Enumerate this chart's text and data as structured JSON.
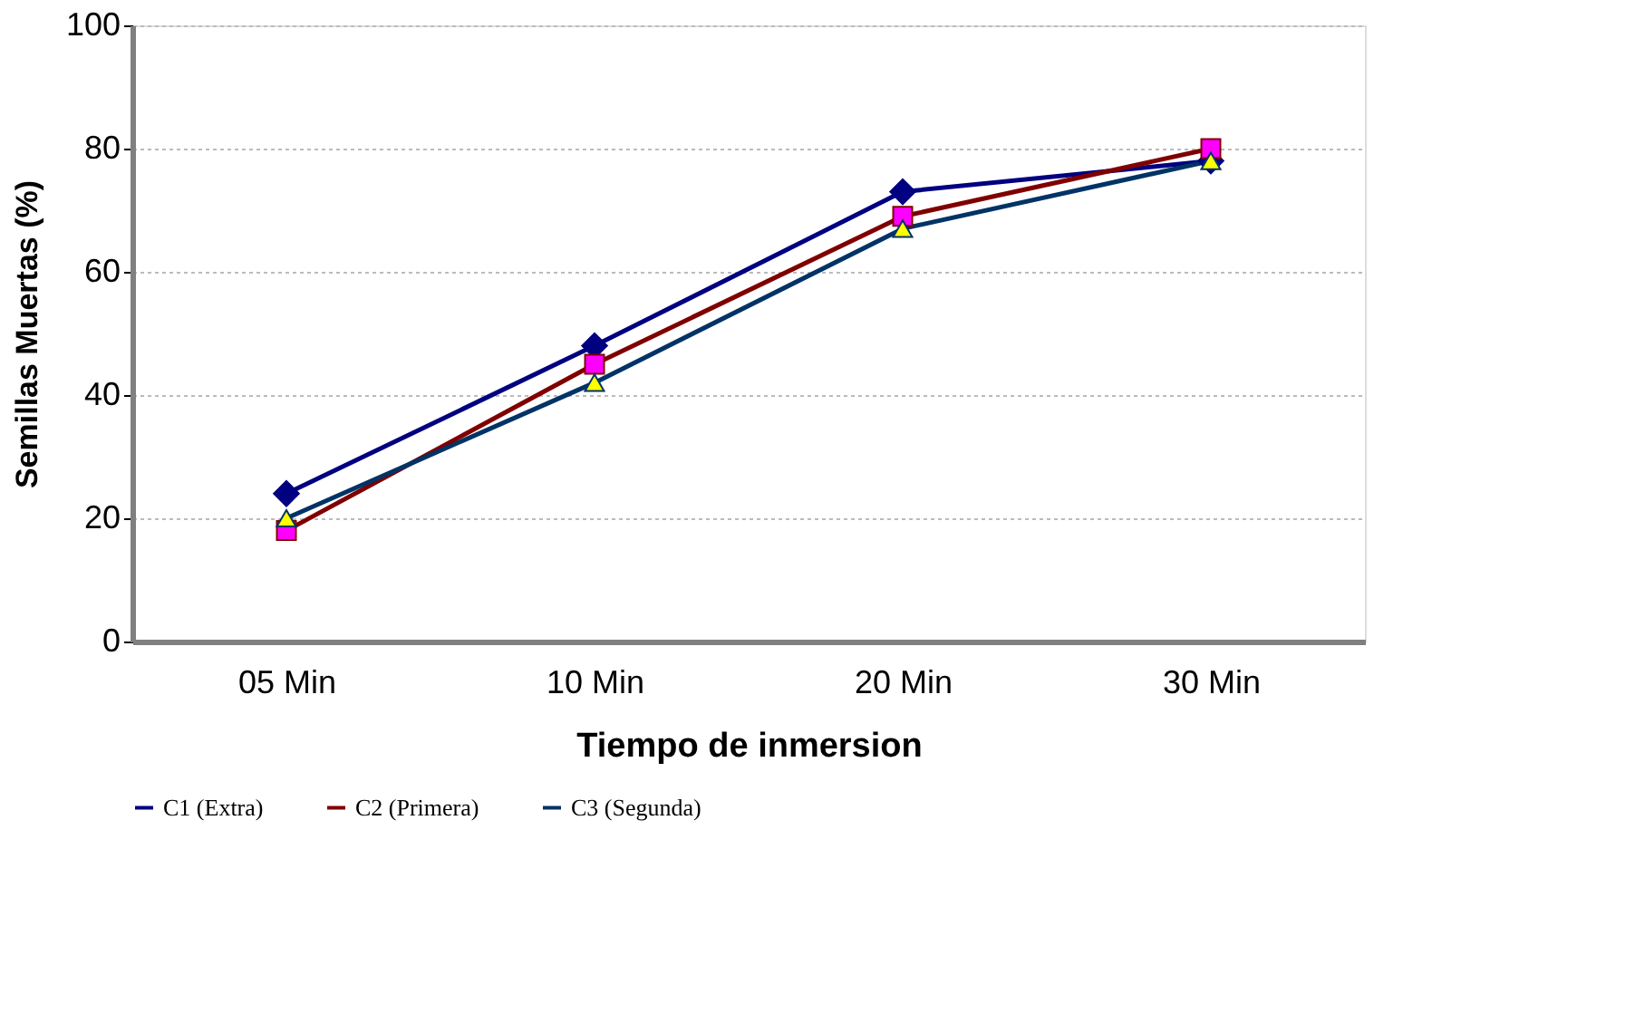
{
  "chart_data": {
    "type": "line",
    "xlabel": "Tiempo de inmersion",
    "ylabel": "Semillas Muertas  (%)",
    "categories": [
      "05 Min",
      "10 Min",
      "20 Min",
      "30 Min"
    ],
    "series": [
      {
        "name": "C1 (Extra)",
        "color": "#000080",
        "marker": "diamond",
        "values": [
          24,
          48,
          73,
          78
        ]
      },
      {
        "name": "C2 (Primera)",
        "color": "#800000",
        "marker": "square",
        "values": [
          18,
          45,
          69,
          80
        ]
      },
      {
        "name": "C3 (Segunda)",
        "color": "#003366",
        "marker": "triangle",
        "values": [
          20,
          42,
          67,
          78
        ]
      }
    ],
    "ylim": [
      0,
      100
    ],
    "yticks": [
      0,
      20,
      40,
      60,
      80,
      100
    ],
    "grid": "y",
    "legend": "bottom",
    "line_style": "solid"
  }
}
